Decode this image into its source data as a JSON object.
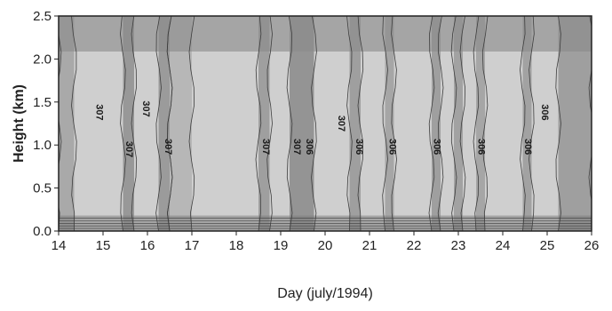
{
  "chart_data": {
    "type": "heatmap",
    "title": "",
    "xlabel": "Day (july/1994)",
    "ylabel": "Height (km)",
    "xlim": [
      14,
      26
    ],
    "ylim": [
      0.0,
      2.5
    ],
    "x_ticks": [
      "14",
      "15",
      "16",
      "17",
      "18",
      "19",
      "20",
      "21",
      "22",
      "23",
      "24",
      "25",
      "26"
    ],
    "y_ticks": [
      "0.0",
      "0.5",
      "1.0",
      "1.5",
      "2.0",
      "2.5"
    ],
    "grid": false,
    "colors": {
      "cool": "#cfcfcf",
      "warm": "#8a8a8a",
      "contour": "#3d3d3d",
      "axis": "#222222"
    },
    "contour_labels": [
      {
        "text": "307",
        "day": 14.85,
        "height": 1.38
      },
      {
        "text": "307",
        "day": 15.52,
        "height": 0.95
      },
      {
        "text": "307",
        "day": 15.9,
        "height": 1.42
      },
      {
        "text": "307",
        "day": 16.4,
        "height": 0.98
      },
      {
        "text": "307",
        "day": 18.6,
        "height": 0.98
      },
      {
        "text": "307",
        "day": 19.3,
        "height": 0.98
      },
      {
        "text": "306",
        "day": 19.58,
        "height": 0.98
      },
      {
        "text": "307",
        "day": 20.3,
        "height": 1.25
      },
      {
        "text": "306",
        "day": 20.7,
        "height": 0.98
      },
      {
        "text": "306",
        "day": 21.45,
        "height": 0.98
      },
      {
        "text": "306",
        "day": 22.45,
        "height": 0.98
      },
      {
        "text": "306",
        "day": 23.45,
        "height": 0.98
      },
      {
        "text": "306",
        "day": 24.5,
        "height": 0.98
      },
      {
        "text": "306",
        "day": 24.88,
        "height": 1.38
      }
    ]
  }
}
